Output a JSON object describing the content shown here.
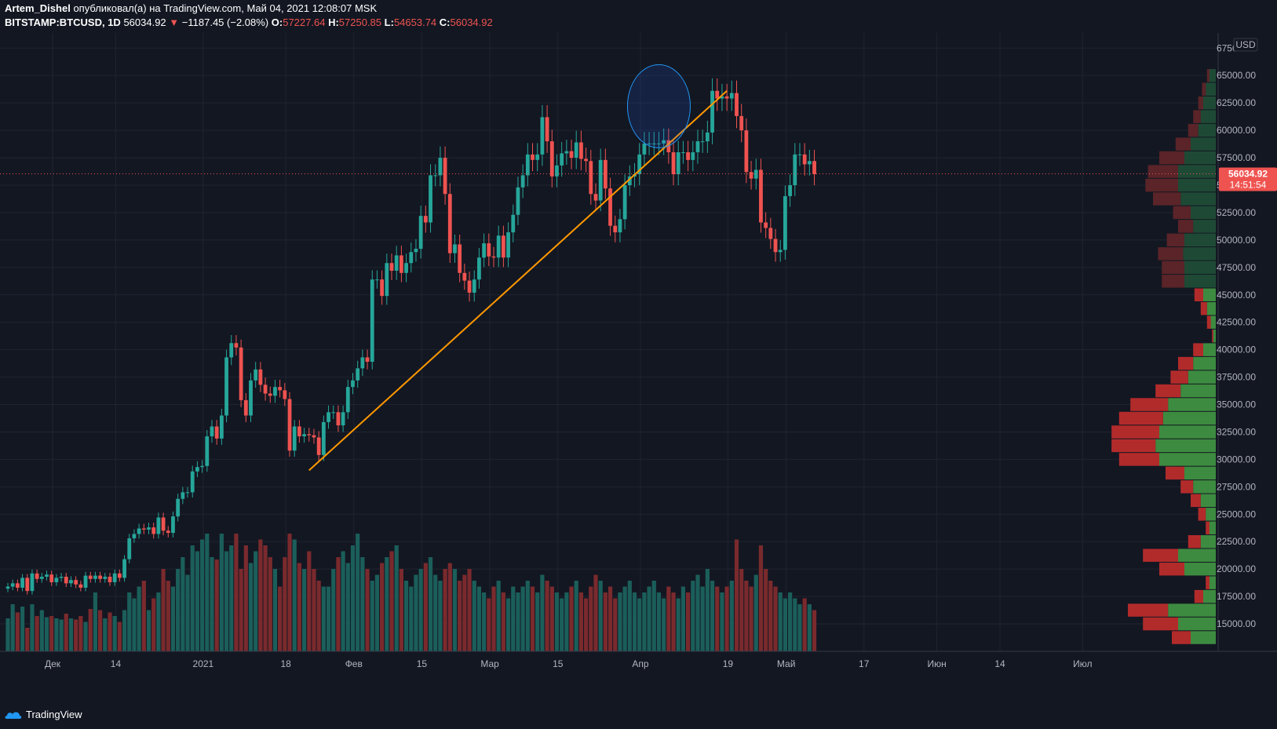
{
  "header": {
    "author": "Artem_Dishel",
    "published_text": "опубликовал(а) на TradingView.com, Май 04, 2021 12:08:07 MSK",
    "symbol": "BITSTAMP:BTCUSD, 1D",
    "price": "56034.92",
    "change_arrow": "▼",
    "change": "−1187.45 (−2.08%)",
    "o_label": "O:",
    "o_value": "57227.64",
    "h_label": "H:",
    "h_value": "57250.85",
    "l_label": "L:",
    "l_value": "54653.74",
    "c_label": "C:",
    "c_value": "56034.92"
  },
  "footer": {
    "brand": "TradingView"
  },
  "colors": {
    "up": "#26a69a",
    "down": "#ef5350",
    "trendline": "#ff9800",
    "background": "#131722"
  },
  "chart_data": {
    "type": "candlestick",
    "currency_label": "USD",
    "ylim": [
      12500,
      68500
    ],
    "y_ticks": [
      "67500.00",
      "65000.00",
      "62500.00",
      "60000.00",
      "57500.00",
      "55000.00",
      "52500.00",
      "50000.00",
      "47500.00",
      "45000.00",
      "42500.00",
      "40000.00",
      "37500.00",
      "35000.00",
      "32500.00",
      "30000.00",
      "27500.00",
      "25000.00",
      "22500.00",
      "20000.00",
      "17500.00",
      "15000.00"
    ],
    "x_labels": [
      {
        "text": "Дек",
        "day": 0
      },
      {
        "text": "14",
        "day": 13
      },
      {
        "text": "2021",
        "day": 31
      },
      {
        "text": "18",
        "day": 48
      },
      {
        "text": "Фев",
        "day": 62
      },
      {
        "text": "15",
        "day": 76
      },
      {
        "text": "Мар",
        "day": 90
      },
      {
        "text": "15",
        "day": 104
      },
      {
        "text": "Апр",
        "day": 121
      },
      {
        "text": "19",
        "day": 139
      },
      {
        "text": "Май",
        "day": 151
      },
      {
        "text": "17",
        "day": 167
      },
      {
        "text": "Июн",
        "day": 182
      },
      {
        "text": "14",
        "day": 195
      },
      {
        "text": "Июл",
        "day": 212
      }
    ],
    "last_price_label": "56034.92",
    "countdown": "14:51:54",
    "last_price": 56034.92,
    "start_date": "2020-11-23",
    "close": [
      18400,
      18700,
      18300,
      19200,
      18000,
      19600,
      19100,
      19300,
      19500,
      18800,
      19200,
      19300,
      18700,
      19000,
      18600,
      18300,
      19400,
      19100,
      19400,
      19100,
      19300,
      18800,
      19600,
      19200,
      20900,
      22800,
      23200,
      23700,
      23600,
      23800,
      23200,
      24700,
      23500,
      23300,
      24800,
      26400,
      27000,
      27000,
      28900,
      29300,
      29400,
      32100,
      33000,
      31900,
      34000,
      39300,
      40600,
      40200,
      35400,
      34000,
      37200,
      38200,
      36800,
      36000,
      35800,
      36600,
      36300,
      35500,
      30800,
      33000,
      32100,
      32300,
      32200,
      32000,
      30400,
      33400,
      34300,
      34300,
      33100,
      34300,
      36600,
      37200,
      38300,
      39300,
      38900,
      46400,
      46400,
      44900,
      47900,
      47200,
      48600,
      47000,
      47900,
      48900,
      49200,
      52200,
      51600,
      55900,
      55900,
      57500,
      54200,
      48800,
      49600,
      47000,
      46300,
      45200,
      46400,
      48400,
      49700,
      48500,
      48400,
      50400,
      48400,
      50700,
      52300,
      54800,
      55900,
      57800,
      57300,
      57800,
      61200,
      59000,
      55800,
      56800,
      57900,
      58100,
      57500,
      58900,
      57400,
      57200,
      54200,
      53600,
      57300,
      54700,
      51300,
      50700,
      51900,
      55000,
      55800,
      56000,
      57800,
      58800,
      58800,
      58800,
      58800,
      59100,
      58000,
      56000,
      58000,
      58000,
      57300,
      58000,
      59000,
      59000,
      59800,
      63600,
      62900,
      63100,
      62900,
      63400,
      61300,
      60000,
      56200,
      55600,
      56400,
      51600,
      51100,
      50100,
      48900,
      49100,
      54000,
      55000,
      57800,
      57800,
      56900,
      57200,
      56000
    ],
    "volume_scale": [
      0.28,
      0.4,
      0.33,
      0.38,
      0.2,
      0.4,
      0.3,
      0.35,
      0.29,
      0.3,
      0.28,
      0.27,
      0.32,
      0.28,
      0.27,
      0.3,
      0.25,
      0.36,
      0.5,
      0.35,
      0.28,
      0.33,
      0.3,
      0.25,
      0.35,
      0.5,
      0.45,
      0.55,
      0.6,
      0.35,
      0.45,
      0.5,
      0.7,
      0.6,
      0.55,
      0.7,
      0.8,
      0.65,
      0.9,
      0.85,
      0.95,
      1.0,
      0.8,
      0.78,
      1.0,
      0.85,
      0.9,
      1.0,
      0.7,
      0.9,
      0.75,
      0.85,
      0.95,
      0.9,
      0.8,
      0.7,
      0.55,
      0.8,
      1.0,
      0.95,
      0.75,
      0.7,
      0.85,
      0.7,
      0.6,
      0.55,
      0.55,
      0.7,
      0.8,
      0.85,
      0.75,
      0.9,
      1.0,
      0.8,
      0.7,
      0.6,
      0.65,
      0.75,
      0.8,
      0.85,
      0.9,
      0.7,
      0.6,
      0.55,
      0.65,
      0.7,
      0.75,
      0.8,
      0.65,
      0.6,
      0.7,
      0.75,
      0.7,
      0.6,
      0.65,
      0.7,
      0.6,
      0.55,
      0.5,
      0.45,
      0.55,
      0.6,
      0.5,
      0.45,
      0.55,
      0.5,
      0.55,
      0.6,
      0.55,
      0.5,
      0.65,
      0.6,
      0.55,
      0.5,
      0.45,
      0.5,
      0.55,
      0.6,
      0.5,
      0.45,
      0.55,
      0.65,
      0.6,
      0.5,
      0.55,
      0.45,
      0.5,
      0.55,
      0.6,
      0.5,
      0.45,
      0.5,
      0.55,
      0.6,
      0.5,
      0.45,
      0.55,
      0.5,
      0.45,
      0.55,
      0.5,
      0.6,
      0.65,
      0.55,
      0.7,
      0.6,
      0.55,
      0.5,
      0.55,
      0.6,
      0.95,
      0.7,
      0.6,
      0.55,
      0.65,
      0.9,
      0.7,
      0.6,
      0.55,
      0.5,
      0.45,
      0.5,
      0.45,
      0.4,
      0.45,
      0.4,
      0.35
    ],
    "trendline": {
      "from": {
        "day": 62,
        "price": 29000
      },
      "to": {
        "day": 148,
        "price": 63600
      }
    },
    "highlight_circle": {
      "day": 134,
      "price": 62200
    },
    "volume_profile": [
      {
        "price": 65000,
        "buy": 0.05,
        "sell": 0.02
      },
      {
        "price": 63750,
        "buy": 0.08,
        "sell": 0.03
      },
      {
        "price": 62500,
        "buy": 0.1,
        "sell": 0.04
      },
      {
        "price": 61250,
        "buy": 0.12,
        "sell": 0.06
      },
      {
        "price": 60000,
        "buy": 0.14,
        "sell": 0.08
      },
      {
        "price": 58750,
        "buy": 0.2,
        "sell": 0.12
      },
      {
        "price": 57500,
        "buy": 0.25,
        "sell": 0.2
      },
      {
        "price": 56250,
        "buy": 0.3,
        "sell": 0.24
      },
      {
        "price": 55000,
        "buy": 0.3,
        "sell": 0.26
      },
      {
        "price": 53750,
        "buy": 0.28,
        "sell": 0.22
      },
      {
        "price": 52500,
        "buy": 0.2,
        "sell": 0.14
      },
      {
        "price": 51250,
        "buy": 0.18,
        "sell": 0.12
      },
      {
        "price": 50000,
        "buy": 0.25,
        "sell": 0.14
      },
      {
        "price": 48750,
        "buy": 0.26,
        "sell": 0.2
      },
      {
        "price": 47500,
        "buy": 0.25,
        "sell": 0.18
      },
      {
        "price": 46250,
        "buy": 0.25,
        "sell": 0.18
      },
      {
        "price": 45000,
        "buy": 0.1,
        "sell": 0.07
      },
      {
        "price": 43750,
        "buy": 0.07,
        "sell": 0.05
      },
      {
        "price": 42500,
        "buy": 0.04,
        "sell": 0.03
      },
      {
        "price": 41250,
        "buy": 0.02,
        "sell": 0.01
      },
      {
        "price": 40000,
        "buy": 0.1,
        "sell": 0.08
      },
      {
        "price": 38750,
        "buy": 0.18,
        "sell": 0.12
      },
      {
        "price": 37500,
        "buy": 0.22,
        "sell": 0.14
      },
      {
        "price": 36250,
        "buy": 0.28,
        "sell": 0.2
      },
      {
        "price": 35000,
        "buy": 0.38,
        "sell": 0.3
      },
      {
        "price": 33750,
        "buy": 0.42,
        "sell": 0.35
      },
      {
        "price": 32500,
        "buy": 0.45,
        "sell": 0.38
      },
      {
        "price": 31250,
        "buy": 0.48,
        "sell": 0.35
      },
      {
        "price": 30000,
        "buy": 0.45,
        "sell": 0.32
      },
      {
        "price": 28750,
        "buy": 0.25,
        "sell": 0.15
      },
      {
        "price": 27500,
        "buy": 0.18,
        "sell": 0.1
      },
      {
        "price": 26250,
        "buy": 0.12,
        "sell": 0.08
      },
      {
        "price": 25000,
        "buy": 0.08,
        "sell": 0.06
      },
      {
        "price": 23750,
        "buy": 0.05,
        "sell": 0.03
      },
      {
        "price": 22500,
        "buy": 0.12,
        "sell": 0.1
      },
      {
        "price": 21250,
        "buy": 0.3,
        "sell": 0.28
      },
      {
        "price": 20000,
        "buy": 0.25,
        "sell": 0.2
      },
      {
        "price": 18750,
        "buy": 0.05,
        "sell": 0.03
      },
      {
        "price": 17500,
        "buy": 0.1,
        "sell": 0.07
      },
      {
        "price": 16250,
        "buy": 0.38,
        "sell": 0.32
      },
      {
        "price": 15000,
        "buy": 0.3,
        "sell": 0.28
      },
      {
        "price": 13750,
        "buy": 0.2,
        "sell": 0.15
      }
    ]
  }
}
